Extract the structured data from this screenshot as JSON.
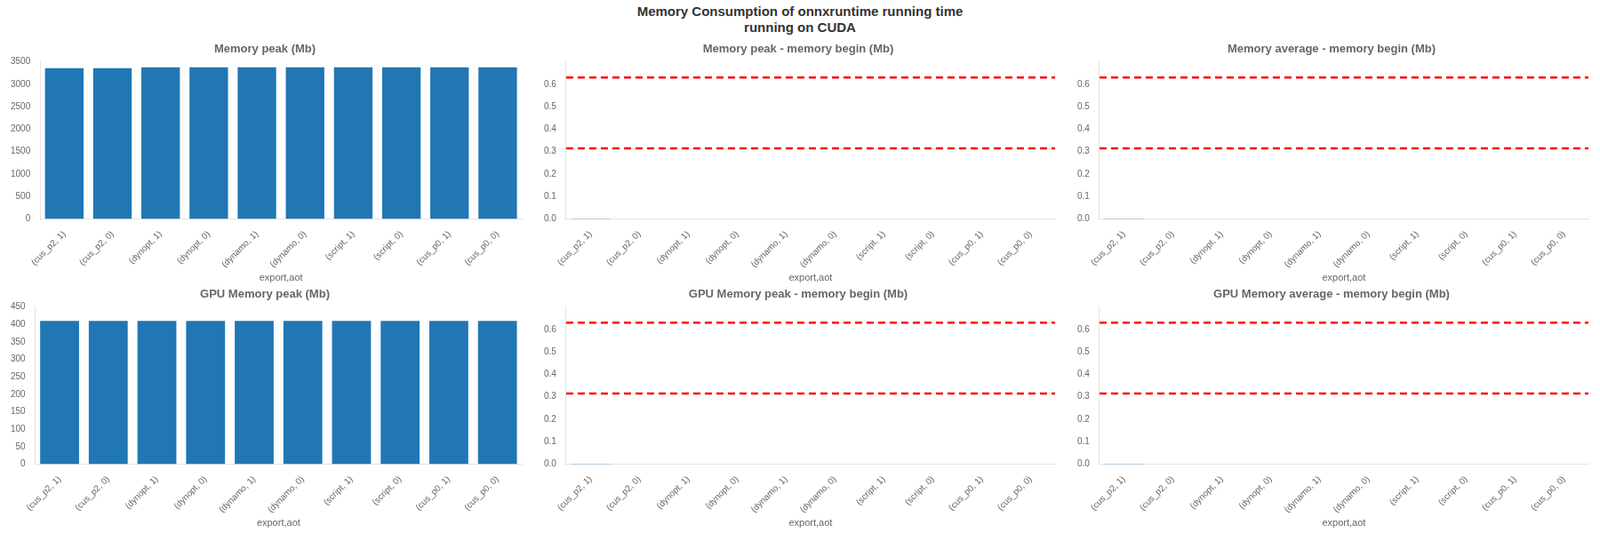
{
  "title": "Memory Consumption of onnxruntime running time\nrunning on CUDA",
  "chart_data": [
    {
      "type": "bar",
      "title": "Memory peak (Mb)",
      "xlabel": "export,aot",
      "categories": [
        "(cus_p2, 1)",
        "(cus_p2, 0)",
        "(dynopt, 1)",
        "(dynopt, 0)",
        "(dynamo, 1)",
        "(dynamo, 0)",
        "(script, 1)",
        "(script, 0)",
        "(cus_p0, 1)",
        "(cus_p0, 0)"
      ],
      "values": [
        3360,
        3360,
        3380,
        3380,
        3380,
        3380,
        3380,
        3380,
        3380,
        3380
      ],
      "color": "#2077b4",
      "ylim": [
        0,
        3500
      ],
      "yticks": [
        0,
        500,
        1000,
        1500,
        2000,
        2500,
        3000,
        3500
      ],
      "grid": false
    },
    {
      "type": "bar",
      "title": "Memory peak - memory begin (Mb)",
      "xlabel": "export,aot",
      "categories": [
        "(cus_p2, 1)",
        "(cus_p2, 0)",
        "(dynopt, 1)",
        "(dynopt, 0)",
        "(dynamo, 1)",
        "(dynamo, 0)",
        "(script, 1)",
        "(script, 0)",
        "(cus_p0, 1)",
        "(cus_p0, 0)"
      ],
      "values": [
        0.002,
        0.0,
        0.0,
        0.0,
        0.0,
        0.0,
        0.0,
        0.0,
        0.0,
        0.0
      ],
      "color": "#2077b4",
      "ylim": [
        0,
        0.7
      ],
      "yticks": [
        {
          "value": 0,
          "label": "0.0"
        },
        0.1,
        0.2,
        0.3,
        0.4,
        0.5,
        0.6
      ],
      "grid": false,
      "hlines": [
        {
          "value": 0.63,
          "color": "red",
          "line_style": "dashed"
        },
        {
          "value": 0.315,
          "color": "red",
          "line_style": "dashed"
        }
      ]
    },
    {
      "type": "bar",
      "title": "Memory average - memory begin (Mb)",
      "xlabel": "export,aot",
      "categories": [
        "(cus_p2, 1)",
        "(cus_p2, 0)",
        "(dynopt, 1)",
        "(dynopt, 0)",
        "(dynamo, 1)",
        "(dynamo, 0)",
        "(script, 1)",
        "(script, 0)",
        "(cus_p0, 1)",
        "(cus_p0, 0)"
      ],
      "values": [
        0.002,
        0.0,
        0.0,
        0.0,
        0.0,
        0.0,
        0.0,
        0.0,
        0.0,
        0.0
      ],
      "color": "#2077b4",
      "ylim": [
        0,
        0.7
      ],
      "yticks": [
        {
          "value": 0,
          "label": "0.0"
        },
        0.1,
        0.2,
        0.3,
        0.4,
        0.5,
        0.6
      ],
      "grid": false,
      "hlines": [
        {
          "value": 0.63,
          "color": "red",
          "line_style": "dashed"
        },
        {
          "value": 0.315,
          "color": "red",
          "line_style": "dashed"
        }
      ]
    },
    {
      "type": "bar",
      "title": "GPU Memory peak (Mb)",
      "xlabel": "export,aot",
      "categories": [
        "(cus_p2, 1)",
        "(cus_p2, 0)",
        "(dynopt, 1)",
        "(dynopt, 0)",
        "(dynamo, 1)",
        "(dynamo, 0)",
        "(script, 1)",
        "(script, 0)",
        "(cus_p0, 1)",
        "(cus_p0, 0)"
      ],
      "values": [
        410,
        410,
        410,
        410,
        410,
        410,
        410,
        410,
        410,
        410
      ],
      "color": "#2077b4",
      "ylim": [
        0,
        450
      ],
      "yticks": [
        0,
        50,
        100,
        150,
        200,
        250,
        300,
        350,
        400,
        450
      ],
      "grid": false
    },
    {
      "type": "bar",
      "title": "GPU Memory peak - memory begin (Mb)",
      "xlabel": "export,aot",
      "categories": [
        "(cus_p2, 1)",
        "(cus_p2, 0)",
        "(dynopt, 1)",
        "(dynopt, 0)",
        "(dynamo, 1)",
        "(dynamo, 0)",
        "(script, 1)",
        "(script, 0)",
        "(cus_p0, 1)",
        "(cus_p0, 0)"
      ],
      "values": [
        0.002,
        0.0,
        0.0,
        0.0,
        0.0,
        0.0,
        0.0,
        0.0,
        0.0,
        0.0
      ],
      "color": "#2077b4",
      "ylim": [
        0,
        0.7
      ],
      "yticks": [
        {
          "value": 0,
          "label": "0.0"
        },
        0.1,
        0.2,
        0.3,
        0.4,
        0.5,
        0.6
      ],
      "grid": false,
      "hlines": [
        {
          "value": 0.63,
          "color": "red",
          "line_style": "dashed"
        },
        {
          "value": 0.315,
          "color": "red",
          "line_style": "dashed"
        }
      ]
    },
    {
      "type": "bar",
      "title": "GPU Memory average - memory begin (Mb)",
      "xlabel": "export,aot",
      "categories": [
        "(cus_p2, 1)",
        "(cus_p2, 0)",
        "(dynopt, 1)",
        "(dynopt, 0)",
        "(dynamo, 1)",
        "(dynamo, 0)",
        "(script, 1)",
        "(script, 0)",
        "(cus_p0, 1)",
        "(cus_p0, 0)"
      ],
      "values": [
        0.002,
        0.0,
        0.0,
        0.0,
        0.0,
        0.0,
        0.0,
        0.0,
        0.0,
        0.0
      ],
      "color": "#2077b4",
      "ylim": [
        0,
        0.7
      ],
      "yticks": [
        {
          "value": 0,
          "label": "0.0"
        },
        0.1,
        0.2,
        0.3,
        0.4,
        0.5,
        0.6
      ],
      "grid": false,
      "hlines": [
        {
          "value": 0.63,
          "color": "red",
          "line_style": "dashed"
        },
        {
          "value": 0.315,
          "color": "red",
          "line_style": "dashed"
        }
      ]
    }
  ]
}
